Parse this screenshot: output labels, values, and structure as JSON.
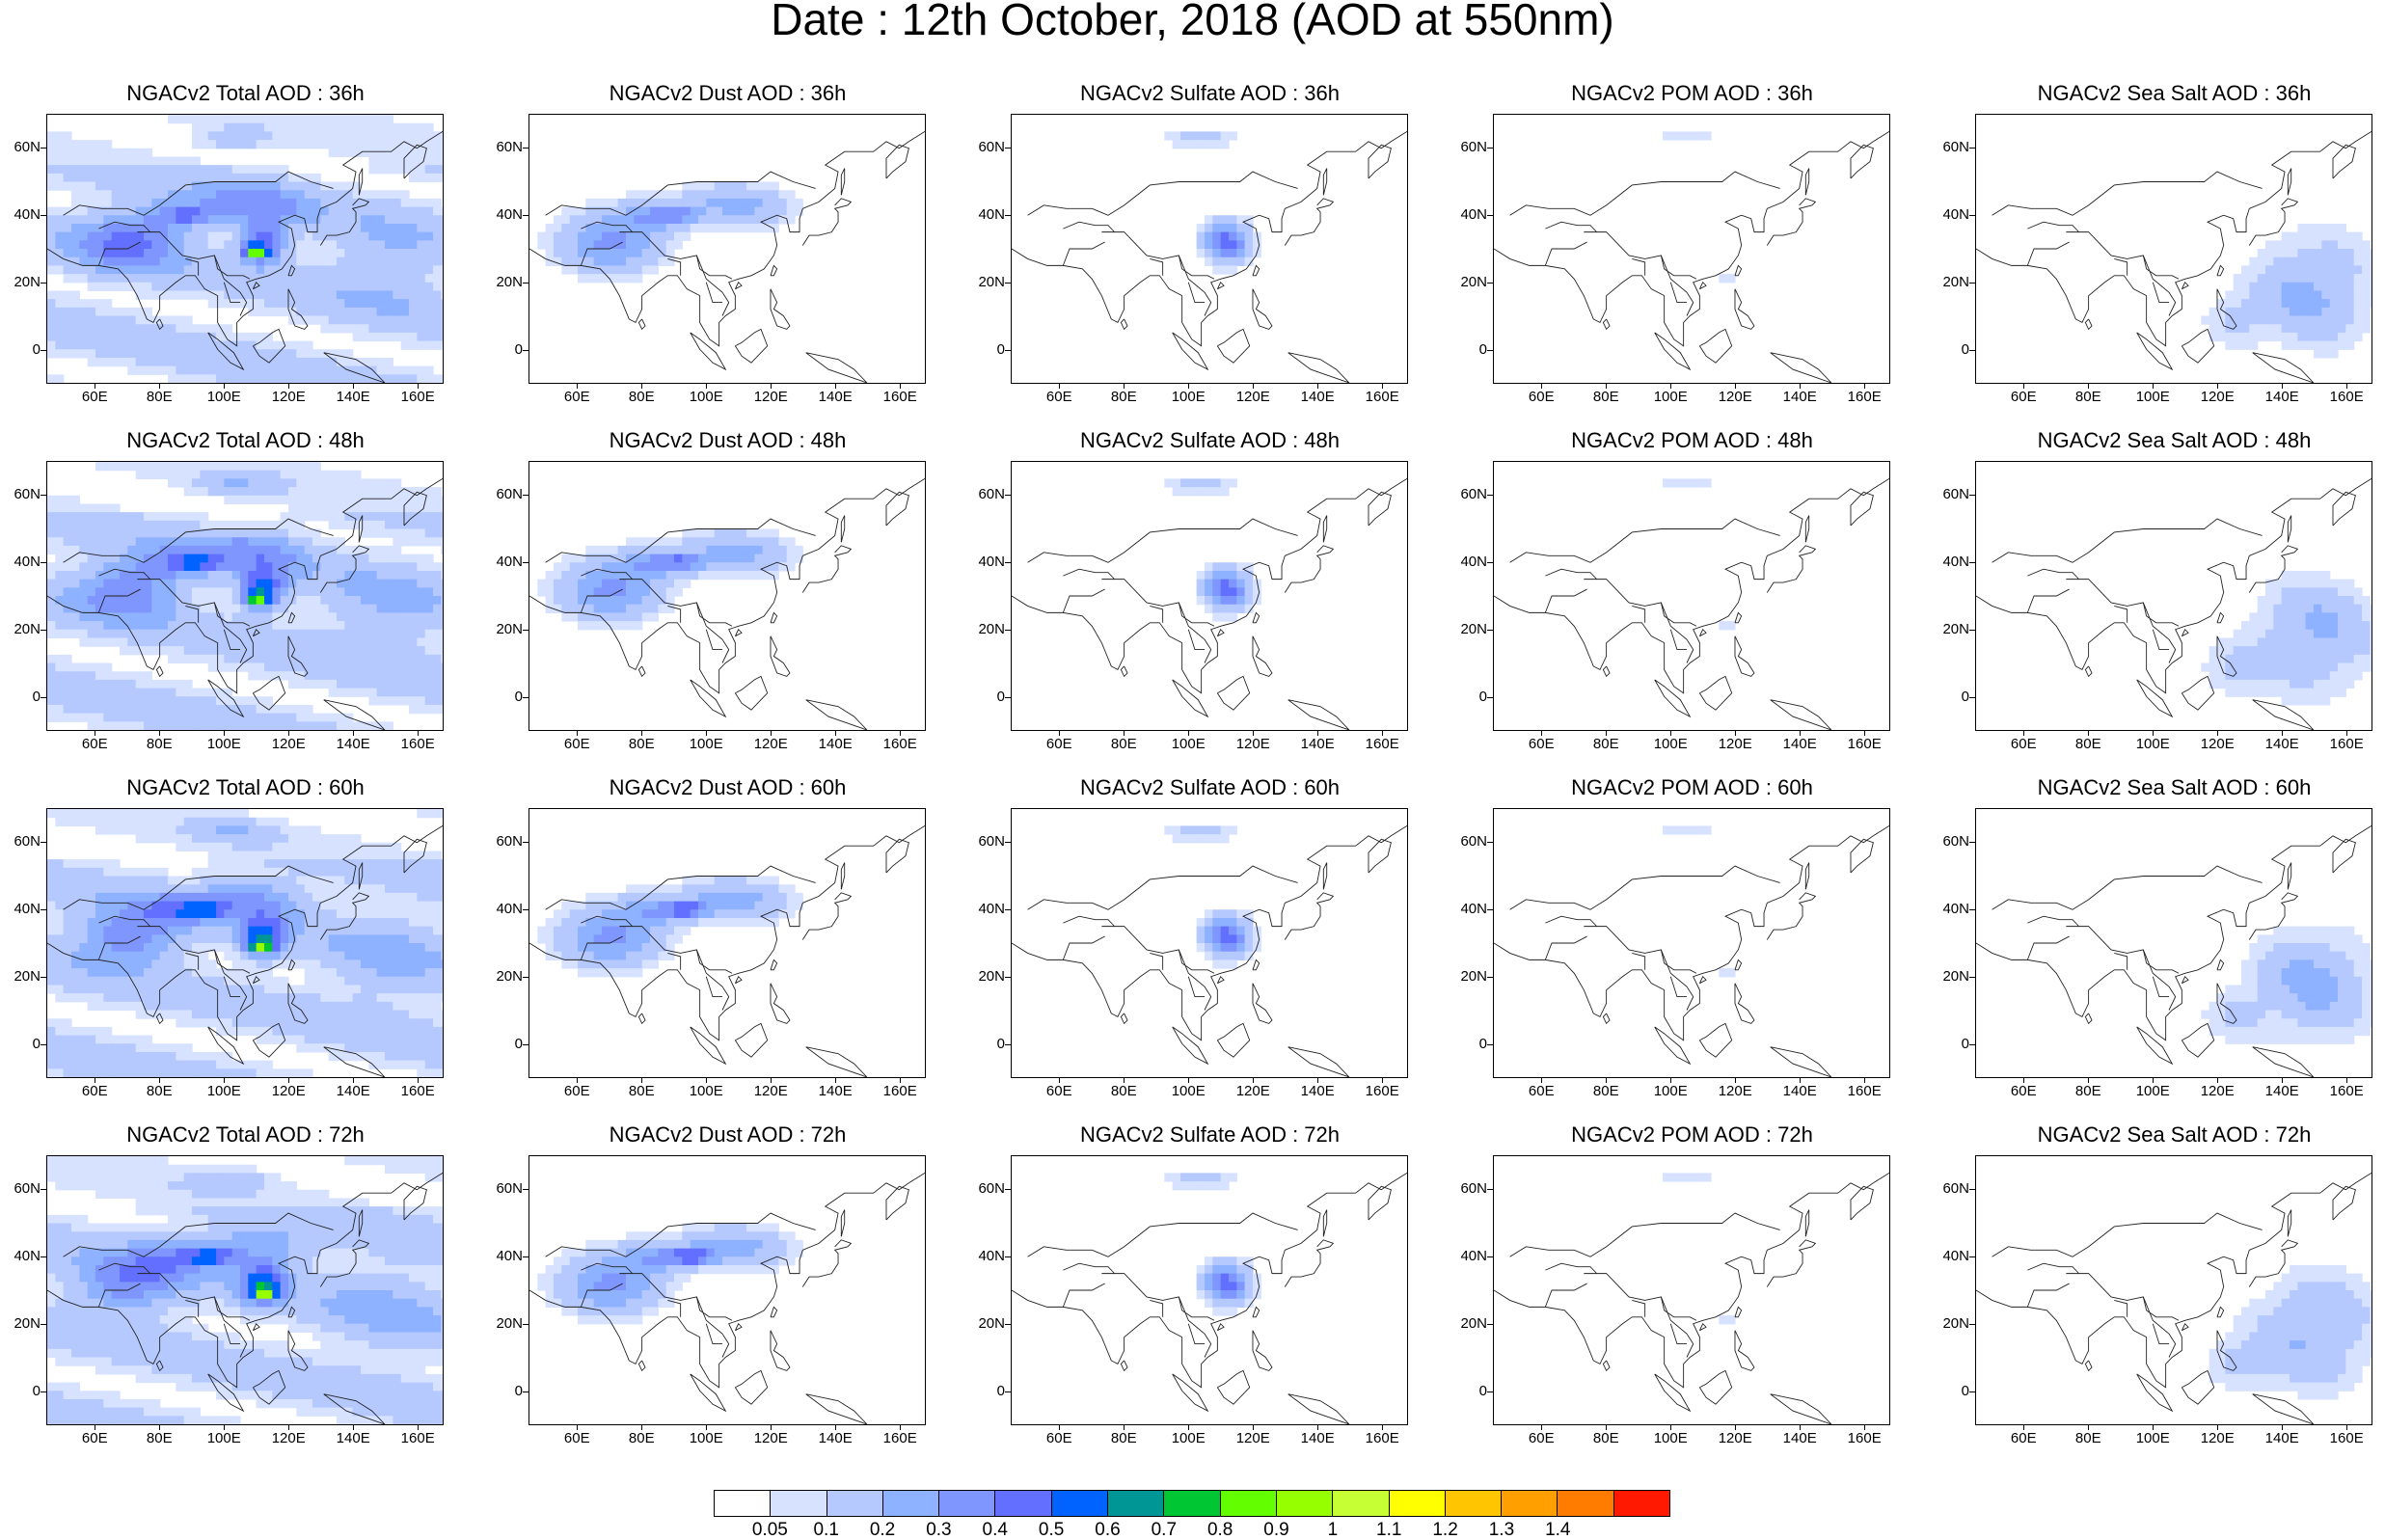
{
  "title": "Date : 12th October, 2018 (AOD at 550nm)",
  "axes": {
    "lat_labels": [
      "60N",
      "40N",
      "20N",
      "0"
    ],
    "lat_values": [
      60,
      40,
      20,
      0
    ],
    "lon_labels": [
      "60E",
      "80E",
      "100E",
      "120E",
      "140E",
      "160E"
    ],
    "lon_values": [
      60,
      80,
      100,
      120,
      140,
      160
    ],
    "lon_range": [
      45,
      168
    ],
    "lat_range": [
      -10,
      70
    ]
  },
  "colors": [
    "#ffffff",
    "#d6e2ff",
    "#b5c9ff",
    "#8eb2ff",
    "#7f96ff",
    "#6370ff",
    "#0063ff",
    "#009696",
    "#00c633",
    "#63ff00",
    "#96ff00",
    "#c6ff33",
    "#ffff00",
    "#ffc600",
    "#ffa000",
    "#ff7c00",
    "#ff1900"
  ],
  "colorbar": {
    "labels": [
      "0.05",
      "0.1",
      "0.2",
      "0.3",
      "0.4",
      "0.5",
      "0.6",
      "0.7",
      "0.8",
      "0.9",
      "1",
      "1.1",
      "1.2",
      "1.3",
      "1.4"
    ]
  },
  "panels": [
    {
      "title": "NGACv2 Total AOD : 36h",
      "species": "total",
      "hour": 36
    },
    {
      "title": "NGACv2 Dust AOD : 36h",
      "species": "dust",
      "hour": 36
    },
    {
      "title": "NGACv2 Sulfate AOD : 36h",
      "species": "sulfate",
      "hour": 36
    },
    {
      "title": "NGACv2 POM AOD : 36h",
      "species": "pom",
      "hour": 36
    },
    {
      "title": "NGACv2 Sea Salt AOD : 36h",
      "species": "seasalt",
      "hour": 36
    },
    {
      "title": "NGACv2 Total AOD : 48h",
      "species": "total",
      "hour": 48
    },
    {
      "title": "NGACv2 Dust AOD : 48h",
      "species": "dust",
      "hour": 48
    },
    {
      "title": "NGACv2 Sulfate AOD : 48h",
      "species": "sulfate",
      "hour": 48
    },
    {
      "title": "NGACv2 POM AOD : 48h",
      "species": "pom",
      "hour": 48
    },
    {
      "title": "NGACv2 Sea Salt AOD : 48h",
      "species": "seasalt",
      "hour": 48
    },
    {
      "title": "NGACv2 Total AOD : 60h",
      "species": "total",
      "hour": 60
    },
    {
      "title": "NGACv2 Dust AOD : 60h",
      "species": "dust",
      "hour": 60
    },
    {
      "title": "NGACv2 Sulfate AOD : 60h",
      "species": "sulfate",
      "hour": 60
    },
    {
      "title": "NGACv2 POM AOD : 60h",
      "species": "pom",
      "hour": 60
    },
    {
      "title": "NGACv2 Sea Salt AOD : 60h",
      "species": "seasalt",
      "hour": 60
    },
    {
      "title": "NGACv2 Total AOD : 72h",
      "species": "total",
      "hour": 72
    },
    {
      "title": "NGACv2 Dust AOD : 72h",
      "species": "dust",
      "hour": 72
    },
    {
      "title": "NGACv2 Sulfate AOD : 72h",
      "species": "sulfate",
      "hour": 72
    },
    {
      "title": "NGACv2 POM AOD : 72h",
      "species": "pom",
      "hour": 72
    },
    {
      "title": "NGACv2 Sea Salt  AOD : 72h",
      "species": "seasalt",
      "hour": 72
    }
  ]
}
